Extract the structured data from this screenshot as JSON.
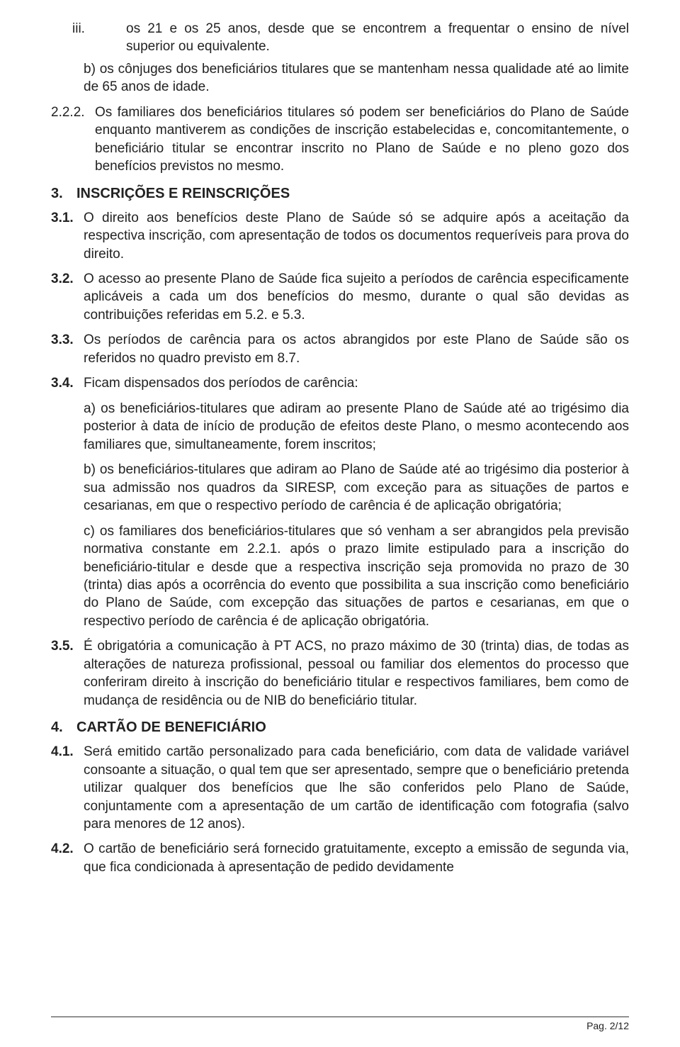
{
  "colors": {
    "text": "#222222",
    "bg": "#ffffff",
    "rule": "#333333"
  },
  "font": {
    "body_size_pt": 14,
    "heading_weight": 700
  },
  "items": {
    "iii_marker": "iii.",
    "iii_text": "os 21 e os 25 anos, desde que se encontrem a frequentar o ensino de nível superior ou equivalente.",
    "b_text": "b) os cônjuges dos beneficiários titulares que se mantenham nessa qualidade até ao limite de 65 anos de idade.",
    "n222": "2.2.2.",
    "t222": "Os familiares dos beneficiários titulares só podem ser beneficiários do Plano de Saúde enquanto mantiverem as condições de inscrição estabelecidas e, concomitantemente, o beneficiário titular se encontrar inscrito no Plano de Saúde e no pleno gozo dos benefícios previstos no mesmo.",
    "sec3_num": "3.",
    "sec3_title": "INSCRIÇÕES E REINSCRIÇÕES",
    "n31": "3.1.",
    "t31": "O direito aos benefícios deste Plano de Saúde só se adquire após a aceitação da respectiva inscrição, com apresentação de todos os documentos requeríveis para prova do direito.",
    "n32": "3.2.",
    "t32": "O acesso ao presente Plano de Saúde fica sujeito a períodos de carência especificamente aplicáveis a cada um dos benefícios do mesmo, durante o qual são devidas as contribuições referidas em 5.2. e 5.3.",
    "n33": "3.3.",
    "t33": "Os períodos de carência para os actos abrangidos por este Plano de Saúde são os referidos no quadro previsto em 8.7.",
    "n34": "3.4.",
    "t34": "Ficam dispensados dos períodos de carência:",
    "t34a": "a) os beneficiários-titulares que adiram ao presente Plano de Saúde até ao trigésimo dia posterior à data de início de produção de efeitos deste Plano, o mesmo acontecendo aos familiares que, simultaneamente, forem inscritos;",
    "t34b": "b) os beneficiários-titulares que adiram ao Plano de Saúde até ao trigésimo dia posterior à sua admissão nos quadros da SIRESP, com exceção para as situações de partos e cesarianas, em que o respectivo período de carência é de aplicação obrigatória;",
    "t34c": "c) os familiares dos beneficiários-titulares que só venham a ser abrangidos pela previsão normativa constante em 2.2.1. após o prazo limite estipulado para a inscrição do beneficiário-titular e desde que a respectiva inscrição seja promovida no prazo de 30 (trinta) dias após a ocorrência do evento que possibilita a sua inscrição como beneficiário do Plano de Saúde, com excepção das situações de partos e cesarianas, em que o respectivo período de carência é de aplicação obrigatória.",
    "n35": "3.5.",
    "t35": "É obrigatória a comunicação à PT ACS, no prazo máximo de 30 (trinta) dias, de todas as alterações de natureza profissional, pessoal ou familiar dos elementos do processo que conferiram direito à inscrição do beneficiário titular e respectivos familiares, bem como de mudança de residência ou de NIB do beneficiário titular.",
    "sec4_num": "4.",
    "sec4_title": "CARTÃO DE BENEFICIÁRIO",
    "n41": "4.1.",
    "t41": "Será emitido cartão personalizado para cada beneficiário, com data de validade variável consoante a situação, o qual tem que ser apresentado, sempre que o beneficiário pretenda utilizar qualquer dos benefícios que lhe são conferidos pelo Plano de Saúde, conjuntamente com a apresentação de um cartão de identificação com fotografia (salvo para menores de 12 anos).",
    "n42": "4.2.",
    "t42": "O cartão de beneficiário será fornecido gratuitamente, excepto a emissão de segunda via, que fica condicionada à apresentação de pedido devidamente"
  },
  "footer": "Pag. 2/12"
}
